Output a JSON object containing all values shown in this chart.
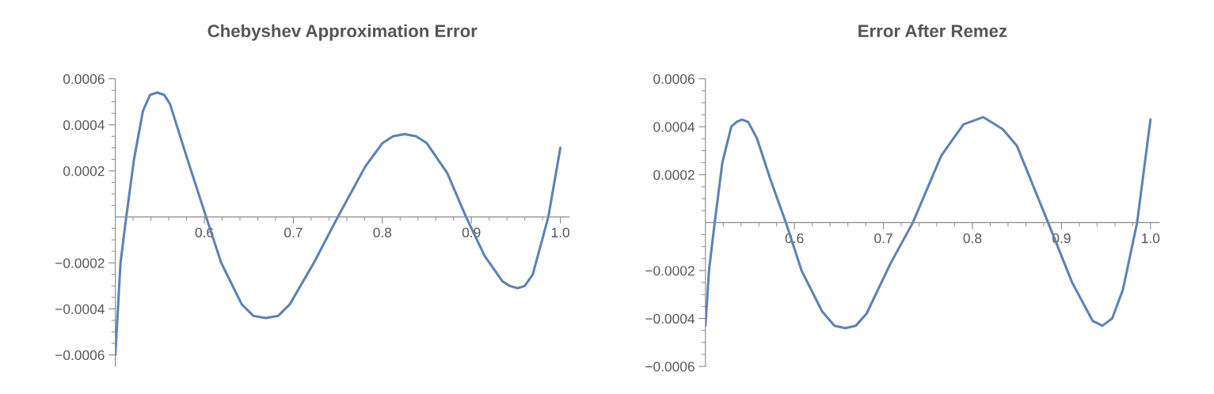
{
  "chart_data": [
    {
      "type": "line",
      "title": "Chebyshev Approximation Error",
      "grid": false,
      "marker": "none",
      "line_style": "solid",
      "series": [
        {
          "color": "#5e81b5",
          "x": [
            0.5,
            0.5058,
            0.5123,
            0.521,
            0.531,
            0.539,
            0.547,
            0.555,
            0.5615,
            0.581,
            0.602,
            0.619,
            0.642,
            0.655,
            0.669,
            0.683,
            0.696,
            0.723,
            0.75,
            0.781,
            0.8,
            0.812,
            0.825,
            0.838,
            0.85,
            0.873,
            0.894,
            0.915,
            0.935,
            0.943,
            0.952,
            0.96,
            0.969,
            0.9865,
            1.0
          ],
          "values": [
            -0.0006,
            -0.0002,
            0,
            0.00025,
            0.00046,
            0.00053,
            0.00054,
            0.00053,
            0.00049,
            0.00025,
            0,
            -0.0002,
            -0.00038,
            -0.00043,
            -0.00044,
            -0.00043,
            -0.00038,
            -0.0002,
            0,
            0.00022,
            0.00032,
            0.00035,
            0.00036,
            0.00035,
            0.00032,
            0.00019,
            0,
            -0.00017,
            -0.00028,
            -0.0003,
            -0.00031,
            -0.0003,
            -0.00025,
            0,
            0.0003
          ]
        }
      ],
      "xlim": [
        0.5,
        1.01
      ],
      "ylim": [
        -0.00065,
        0.0006
      ],
      "xticks": [
        {
          "value": 0.52,
          "label": null
        },
        {
          "value": 0.54,
          "label": null
        },
        {
          "value": 0.56,
          "label": null
        },
        {
          "value": 0.58,
          "label": null
        },
        0.6,
        {
          "value": 0.62,
          "label": null
        },
        {
          "value": 0.64,
          "label": null
        },
        {
          "value": 0.66,
          "label": null
        },
        {
          "value": 0.68,
          "label": null
        },
        0.7,
        {
          "value": 0.72,
          "label": null
        },
        {
          "value": 0.74,
          "label": null
        },
        {
          "value": 0.76,
          "label": null
        },
        {
          "value": 0.78,
          "label": null
        },
        0.8,
        {
          "value": 0.82,
          "label": null
        },
        {
          "value": 0.84,
          "label": null
        },
        {
          "value": 0.86,
          "label": null
        },
        {
          "value": 0.88,
          "label": null
        },
        0.9,
        {
          "value": 0.92,
          "label": null
        },
        {
          "value": 0.94,
          "label": null
        },
        {
          "value": 0.96,
          "label": null
        },
        {
          "value": 0.98,
          "label": null
        },
        {
          "value": 1.0,
          "label": "1.0"
        }
      ],
      "yticks": [
        {
          "value": -0.0006,
          "label": "−0.0006"
        },
        {
          "value": -0.00055,
          "label": null
        },
        {
          "value": -0.0005,
          "label": null
        },
        {
          "value": -0.00045,
          "label": null
        },
        {
          "value": -0.0004,
          "label": "−0.0004"
        },
        {
          "value": -0.00035,
          "label": null
        },
        {
          "value": -0.0003,
          "label": null
        },
        {
          "value": -0.00025,
          "label": null
        },
        {
          "value": -0.0002,
          "label": "−0.0002"
        },
        {
          "value": -0.00015,
          "label": null
        },
        {
          "value": -0.0001,
          "label": null
        },
        {
          "value": -5e-05,
          "label": null
        },
        {
          "value": 5e-05,
          "label": null
        },
        {
          "value": 0.0001,
          "label": null
        },
        {
          "value": 0.00015,
          "label": null
        },
        {
          "value": 0.0002,
          "label": "0.0002"
        },
        {
          "value": 0.00025,
          "label": null
        },
        {
          "value": 0.0003,
          "label": null
        },
        {
          "value": 0.00035,
          "label": null
        },
        {
          "value": 0.0004,
          "label": "0.0004"
        },
        {
          "value": 0.00045,
          "label": null
        },
        {
          "value": 0.0005,
          "label": null
        },
        {
          "value": 0.00055,
          "label": null
        },
        {
          "value": 0.0006,
          "label": "0.0006"
        }
      ]
    },
    {
      "type": "line",
      "title": "Error After Remez",
      "grid": false,
      "marker": "none",
      "line_style": "solid",
      "series": [
        {
          "color": "#5e81b5",
          "x": [
            0.5,
            0.504,
            0.5104,
            0.519,
            0.529,
            0.535,
            0.541,
            0.548,
            0.558,
            0.573,
            0.5904,
            0.608,
            0.631,
            0.645,
            0.657,
            0.669,
            0.681,
            0.708,
            0.733,
            0.765,
            0.79,
            0.812,
            0.834,
            0.85,
            0.885,
            0.912,
            0.935,
            0.946,
            0.957,
            0.969,
            0.985,
            1.0
          ],
          "values": [
            -0.00043,
            -0.0002,
            0,
            0.00025,
            0.0004,
            0.00042,
            0.00043,
            0.00042,
            0.00035,
            0.00018,
            0,
            -0.0002,
            -0.00037,
            -0.00043,
            -0.00044,
            -0.00043,
            -0.00038,
            -0.00017,
            0,
            0.00028,
            0.00041,
            0.00044,
            0.00039,
            0.00032,
            0,
            -0.00025,
            -0.00041,
            -0.00043,
            -0.0004,
            -0.00028,
            0,
            0.00043
          ]
        }
      ],
      "xlim": [
        0.5,
        1.01
      ],
      "ylim": [
        -0.0006,
        0.0006
      ],
      "xticks": [
        {
          "value": 0.52,
          "label": null
        },
        {
          "value": 0.54,
          "label": null
        },
        {
          "value": 0.56,
          "label": null
        },
        {
          "value": 0.58,
          "label": null
        },
        0.6,
        {
          "value": 0.62,
          "label": null
        },
        {
          "value": 0.64,
          "label": null
        },
        {
          "value": 0.66,
          "label": null
        },
        {
          "value": 0.68,
          "label": null
        },
        0.7,
        {
          "value": 0.72,
          "label": null
        },
        {
          "value": 0.74,
          "label": null
        },
        {
          "value": 0.76,
          "label": null
        },
        {
          "value": 0.78,
          "label": null
        },
        0.8,
        {
          "value": 0.82,
          "label": null
        },
        {
          "value": 0.84,
          "label": null
        },
        {
          "value": 0.86,
          "label": null
        },
        {
          "value": 0.88,
          "label": null
        },
        0.9,
        {
          "value": 0.92,
          "label": null
        },
        {
          "value": 0.94,
          "label": null
        },
        {
          "value": 0.96,
          "label": null
        },
        {
          "value": 0.98,
          "label": null
        },
        {
          "value": 1.0,
          "label": "1.0"
        }
      ],
      "yticks": [
        {
          "value": -0.0006,
          "label": "−0.0006"
        },
        {
          "value": -0.00055,
          "label": null
        },
        {
          "value": -0.0005,
          "label": null
        },
        {
          "value": -0.00045,
          "label": null
        },
        {
          "value": -0.0004,
          "label": "−0.0004"
        },
        {
          "value": -0.00035,
          "label": null
        },
        {
          "value": -0.0003,
          "label": null
        },
        {
          "value": -0.00025,
          "label": null
        },
        {
          "value": -0.0002,
          "label": "−0.0002"
        },
        {
          "value": -0.00015,
          "label": null
        },
        {
          "value": -0.0001,
          "label": null
        },
        {
          "value": -5e-05,
          "label": null
        },
        {
          "value": 5e-05,
          "label": null
        },
        {
          "value": 0.0001,
          "label": null
        },
        {
          "value": 0.00015,
          "label": null
        },
        {
          "value": 0.0002,
          "label": "0.0002"
        },
        {
          "value": 0.00025,
          "label": null
        },
        {
          "value": 0.0003,
          "label": null
        },
        {
          "value": 0.00035,
          "label": null
        },
        {
          "value": 0.0004,
          "label": "0.0004"
        },
        {
          "value": 0.00045,
          "label": null
        },
        {
          "value": 0.0005,
          "label": null
        },
        {
          "value": 0.00055,
          "label": null
        },
        {
          "value": 0.0006,
          "label": "0.0006"
        }
      ]
    }
  ]
}
